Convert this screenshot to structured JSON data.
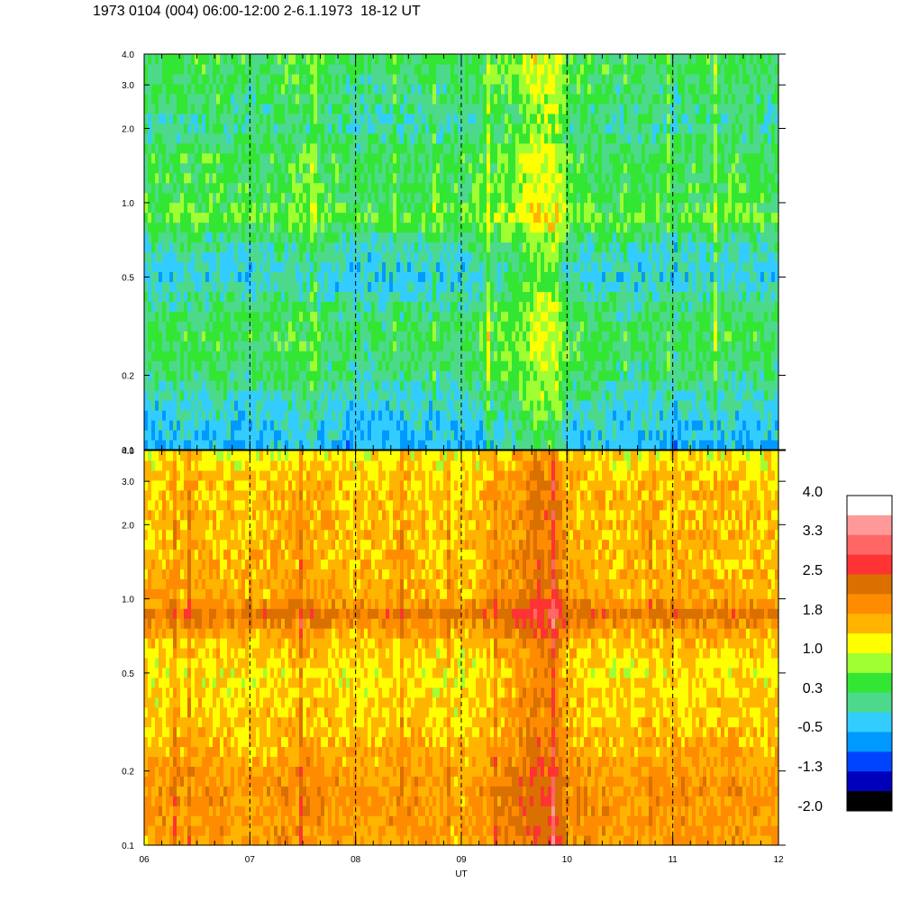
{
  "title": "1973 0104 (004) 06:00-12:00 2-6.1.1973  18-12 UT",
  "chart_data": [
    {
      "type": "heatmap",
      "panel": "top",
      "x_ticks": [
        "06",
        "07",
        "08",
        "09",
        "10",
        "11",
        "12"
      ],
      "x_range": [
        6,
        12
      ],
      "y_scale": "log",
      "y_range": [
        0.1,
        4.0
      ],
      "y_ticks": [
        0.1,
        0.2,
        0.5,
        1.0,
        2.0,
        3.0,
        4.0
      ],
      "y_tick_labels": [
        "0.1",
        "0.2",
        "0.5",
        "1.0",
        "2.0",
        "3.0",
        "4.0"
      ],
      "dashed_gridlines_x": [
        7,
        8,
        9,
        10,
        11
      ],
      "approx_level_profile": {
        "freq": [
          0.1,
          0.15,
          0.2,
          0.3,
          0.5,
          0.7,
          0.9,
          1.0,
          1.5,
          2.0,
          3.0,
          4.0
        ],
        "level": [
          -0.5,
          -0.2,
          0.1,
          0.3,
          -0.3,
          0.0,
          0.6,
          0.3,
          0.3,
          0.0,
          0.2,
          0.3
        ]
      },
      "approx_time_enhancement": {
        "time": [
          6.0,
          6.5,
          7.0,
          7.5,
          8.0,
          8.5,
          9.0,
          9.5,
          9.7,
          9.9,
          10.0,
          10.5,
          11.0,
          11.5,
          12.0
        ],
        "delta": [
          0.0,
          0.1,
          0.0,
          0.2,
          -0.1,
          0.0,
          0.0,
          0.4,
          0.8,
          0.8,
          0.2,
          0.0,
          0.0,
          0.1,
          0.0
        ]
      }
    },
    {
      "type": "heatmap",
      "panel": "bottom",
      "x_ticks": [
        "06",
        "07",
        "08",
        "09",
        "10",
        "11",
        "12"
      ],
      "x_range": [
        6,
        12
      ],
      "xlabel": "UT",
      "y_scale": "log",
      "y_range": [
        0.1,
        4.0
      ],
      "y_ticks": [
        0.1,
        0.2,
        0.5,
        1.0,
        2.0,
        3.0,
        4.0
      ],
      "y_tick_labels": [
        "0.1",
        "0.2",
        "0.5",
        "1.0",
        "2.0",
        "3.0",
        "4.0"
      ],
      "dashed_gridlines_x": [
        7,
        8,
        9,
        10,
        11
      ],
      "approx_level_profile": {
        "freq": [
          0.1,
          0.15,
          0.2,
          0.3,
          0.5,
          0.7,
          0.85,
          0.9,
          1.0,
          1.5,
          2.0,
          3.0,
          4.0
        ],
        "level": [
          1.7,
          1.8,
          1.7,
          1.4,
          1.2,
          1.5,
          2.1,
          2.2,
          1.6,
          1.5,
          1.5,
          1.4,
          1.1
        ]
      },
      "approx_time_enhancement": {
        "time": [
          6.0,
          6.5,
          7.0,
          7.5,
          8.0,
          8.5,
          9.0,
          9.5,
          9.7,
          9.9,
          10.0,
          10.5,
          11.0,
          11.5,
          12.0
        ],
        "delta": [
          0.0,
          0.1,
          0.0,
          0.2,
          0.0,
          0.1,
          -0.1,
          0.4,
          0.7,
          0.7,
          0.2,
          0.0,
          0.1,
          0.1,
          0.0
        ]
      }
    }
  ],
  "colorbar": {
    "labels": [
      "4.0",
      "3.3",
      "2.5",
      "1.8",
      "1.0",
      "0.3",
      "-0.5",
      "-1.3",
      "-2.0"
    ],
    "colors": [
      "#ffffff",
      "#ff9999",
      "#ff6666",
      "#ff3333",
      "#d97000",
      "#ff8c00",
      "#ffb400",
      "#ffff00",
      "#a0ff33",
      "#33e633",
      "#4dd98c",
      "#33ccff",
      "#0099ff",
      "#0044ff",
      "#0000bb",
      "#000000"
    ]
  }
}
